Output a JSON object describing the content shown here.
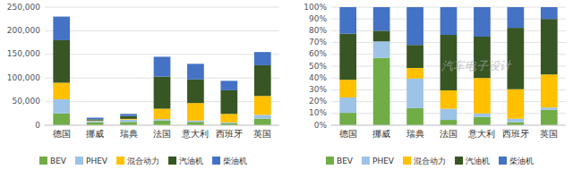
{
  "chart_data": [
    {
      "type": "bar",
      "stacked": true,
      "grid": true,
      "legend": "bottom",
      "categories": [
        "德国",
        "挪威",
        "瑞典",
        "法国",
        "意大利",
        "西班牙",
        "英国"
      ],
      "series": [
        {
          "name": "BEV",
          "color": "#70ad47",
          "values": [
            25000,
            6000,
            7000,
            10000,
            7000,
            4000,
            14000
          ]
        },
        {
          "name": "PHEV",
          "color": "#9dc3e6",
          "values": [
            30000,
            3000,
            5000,
            3000,
            3000,
            2000,
            8000
          ]
        },
        {
          "name": "混合动力",
          "color": "#ffc000",
          "values": [
            35000,
            1000,
            1500,
            22000,
            37000,
            18000,
            40000
          ]
        },
        {
          "name": "汽油机",
          "color": "#375623",
          "values": [
            90000,
            2500,
            6000,
            68000,
            50000,
            50000,
            65000
          ]
        },
        {
          "name": "柴油机",
          "color": "#4472c4",
          "values": [
            50000,
            3500,
            4500,
            42000,
            33000,
            20000,
            28000
          ]
        }
      ],
      "ylim": [
        0,
        250000
      ],
      "yticks": [
        0,
        {
          "value": 50000,
          "label": "50,000"
        },
        {
          "value": 100000,
          "label": "100,000"
        },
        {
          "value": 150000,
          "label": "150,000"
        },
        {
          "value": 200000,
          "label": "200,000"
        },
        {
          "value": 250000,
          "label": "250,000"
        }
      ]
    },
    {
      "type": "bar",
      "stacked": true,
      "grid": true,
      "legend": "bottom",
      "categories": [
        "德国",
        "挪威",
        "瑞典",
        "法国",
        "意大利",
        "西班牙",
        "英国"
      ],
      "series": [
        {
          "name": "BEV",
          "color": "#70ad47",
          "values": [
            10.5,
            57.0,
            14.5,
            4.5,
            7.0,
            2.5,
            13.0
          ]
        },
        {
          "name": "PHEV",
          "color": "#9dc3e6",
          "values": [
            13.0,
            14.0,
            25.0,
            9.5,
            3.0,
            3.0,
            2.0
          ]
        },
        {
          "name": "混合动力",
          "color": "#ffc000",
          "values": [
            15.0,
            0.0,
            9.0,
            15.5,
            30.0,
            25.0,
            28.0
          ]
        },
        {
          "name": "汽油机",
          "color": "#375623",
          "values": [
            39.0,
            9.0,
            19.5,
            47.0,
            35.0,
            52.0,
            47.0
          ]
        },
        {
          "name": "柴油机",
          "color": "#4472c4",
          "values": [
            22.5,
            20.0,
            32.0,
            23.5,
            25.0,
            17.5,
            10.0
          ]
        }
      ],
      "ylim": [
        0,
        100
      ],
      "yticks": [
        {
          "value": 0,
          "label": "0%"
        },
        {
          "value": 10,
          "label": "10%"
        },
        {
          "value": 20,
          "label": "20%"
        },
        {
          "value": 30,
          "label": "30%"
        },
        {
          "value": 40,
          "label": "40%"
        },
        {
          "value": 50,
          "label": "50%"
        },
        {
          "value": 60,
          "label": "60%"
        },
        {
          "value": 70,
          "label": "70%"
        },
        {
          "value": 80,
          "label": "80%"
        },
        {
          "value": 90,
          "label": "90%"
        },
        {
          "value": 100,
          "label": "100%"
        }
      ],
      "annotations": [
        "汽车电子设计"
      ]
    }
  ]
}
